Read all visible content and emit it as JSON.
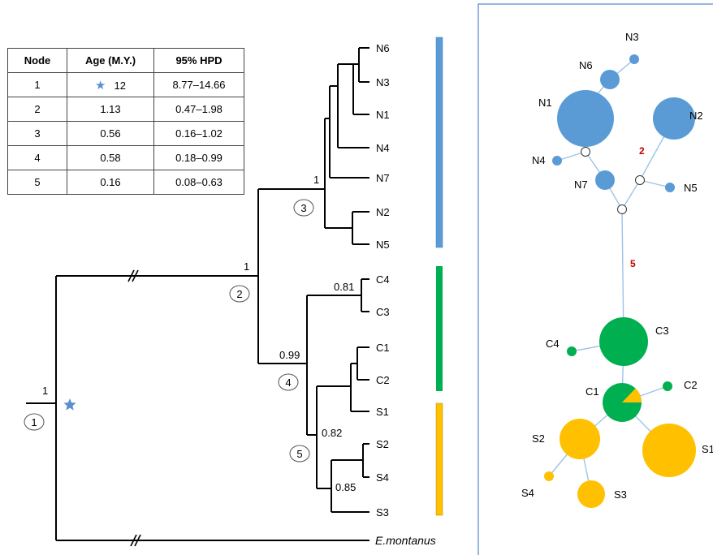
{
  "table": {
    "headers": [
      "Node",
      "Age (M.Y.)",
      "95% HPD"
    ],
    "rows": [
      {
        "node": "1",
        "age": "12",
        "hpd": "8.77–14.66",
        "star": true
      },
      {
        "node": "2",
        "age": "1.13",
        "hpd": "0.47–1.98"
      },
      {
        "node": "3",
        "age": "0.56",
        "hpd": "0.16–1.02"
      },
      {
        "node": "4",
        "age": "0.58",
        "hpd": "0.18–0.99"
      },
      {
        "node": "5",
        "age": "0.16",
        "hpd": "0.08–0.63"
      }
    ]
  },
  "colors": {
    "north": "#5b9bd5",
    "central": "#00b050",
    "south": "#ffc000",
    "mutation_label": "#c00000",
    "panel_border": "#5b8fd0"
  },
  "tree": {
    "tips": [
      "N6",
      "N3",
      "N1",
      "N4",
      "N7",
      "N2",
      "N5",
      "C4",
      "C3",
      "C1",
      "C2",
      "S1",
      "S2",
      "S4",
      "S3"
    ],
    "outgroup": "E.montanus",
    "support": {
      "root": "1",
      "node2": "1",
      "node3": "1",
      "node4": "0.99",
      "node5": "0.82",
      "c4c3": "0.81",
      "s4s3": "0.85"
    },
    "node_ids": [
      "1",
      "2",
      "3",
      "4",
      "5"
    ]
  },
  "network": {
    "haplotypes": [
      "N3",
      "N6",
      "N1",
      "N2",
      "N4",
      "N7",
      "N5",
      "C3",
      "C4",
      "C1",
      "C2",
      "S2",
      "S1",
      "S4",
      "S3"
    ],
    "mutation_counts": [
      "2",
      "5"
    ]
  }
}
